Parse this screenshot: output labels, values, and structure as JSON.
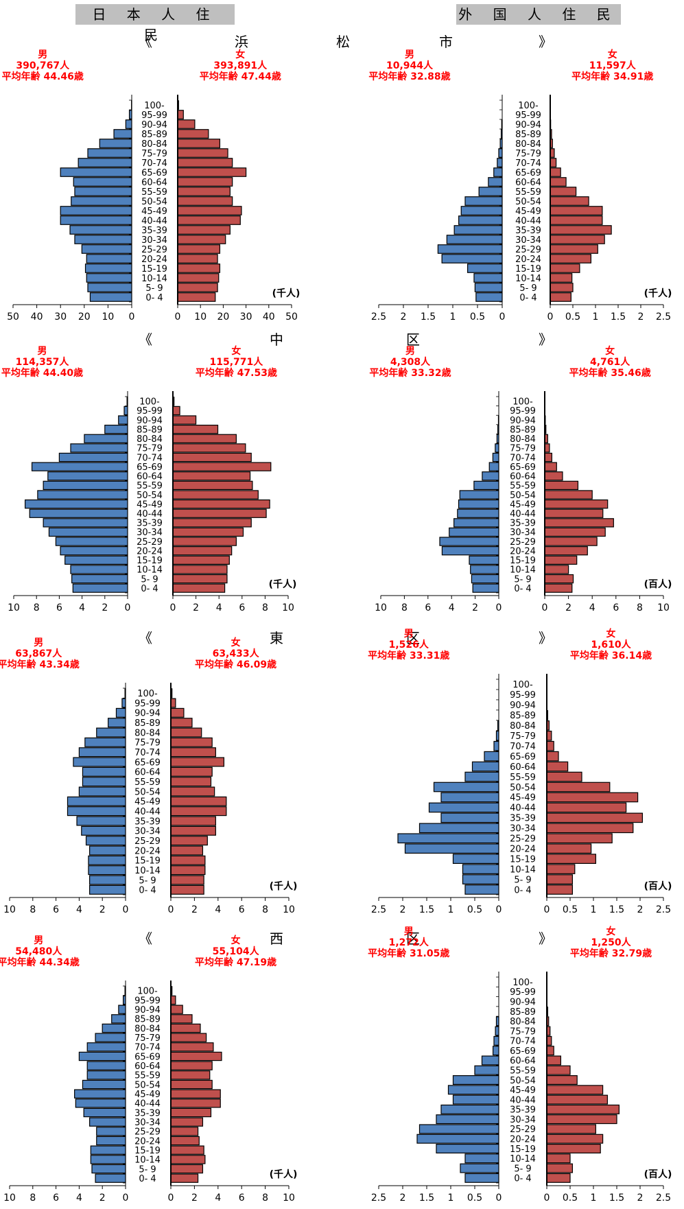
{
  "headers": {
    "japanese": "日 本 人 住 民",
    "foreign": "外 国 人 住 民"
  },
  "age_groups": [
    "100-",
    "95-99",
    "90-94",
    "85-89",
    "80-84",
    "75-79",
    "70-74",
    "65-69",
    "60-64",
    "55-59",
    "50-54",
    "45-49",
    "40-44",
    "35-39",
    "30-34",
    "25-29",
    "20-24",
    "15-19",
    "10-14",
    "5- 9",
    "0- 4"
  ],
  "labels": {
    "male": "男",
    "female": "女",
    "avg_prefix": "平均年齢"
  },
  "colors": {
    "male": "#4f81bd",
    "female": "#c0504d",
    "stats": "#ff0000"
  },
  "rows": [
    {
      "title": [
        "《",
        "浜",
        "松",
        "市",
        "》"
      ]
    },
    {
      "title": [
        "《",
        "中",
        "区",
        "》"
      ]
    },
    {
      "title": [
        "《",
        "東",
        "区",
        "》"
      ]
    },
    {
      "title": [
        "《",
        "西",
        "区",
        "》"
      ]
    }
  ],
  "chart_data": [
    {
      "type": "bar",
      "region": "浜松市",
      "population": "日本人住民",
      "unit": "(千人)",
      "xlim": [
        0,
        50
      ],
      "ticks": [
        "50",
        "40",
        "30",
        "20",
        "10",
        "0"
      ],
      "ticks_r": [
        "0",
        "10",
        "20",
        "30",
        "40",
        "50"
      ],
      "male": {
        "count": "390,767人",
        "avg_age": "44.46歳",
        "values": [
          0.1,
          1,
          2.5,
          7.5,
          13.5,
          18.5,
          22.5,
          30,
          24.5,
          24,
          25.5,
          30,
          30,
          26,
          24,
          21,
          19,
          19.5,
          19,
          18.5,
          17.5
        ]
      },
      "female": {
        "count": "393,891人",
        "avg_age": "47.44歳",
        "values": [
          0.4,
          2.5,
          7.5,
          13.5,
          18.5,
          22,
          24,
          30,
          24,
          23,
          24,
          28,
          27.5,
          23,
          21,
          18.5,
          17.5,
          18.5,
          18,
          17.5,
          16.5
        ]
      }
    },
    {
      "type": "bar",
      "region": "浜松市",
      "population": "外国人住民",
      "unit": "(千人)",
      "xlim": [
        0,
        2.5
      ],
      "ticks": [
        "2.5",
        "2",
        "1.5",
        "1",
        "0.5",
        "0"
      ],
      "ticks_r": [
        "0",
        "0.5",
        "1",
        "1.5",
        "2",
        "2.5"
      ],
      "male": {
        "count": "10,944人",
        "avg_age": "32.88歳",
        "values": [
          0,
          0,
          0.01,
          0.02,
          0.04,
          0.07,
          0.1,
          0.17,
          0.28,
          0.47,
          0.75,
          0.83,
          0.88,
          0.97,
          1.12,
          1.3,
          1.22,
          0.7,
          0.57,
          0.55,
          0.53
        ]
      },
      "female": {
        "count": "11,597人",
        "avg_age": "34.91歳",
        "values": [
          0,
          0,
          0.01,
          0.03,
          0.05,
          0.09,
          0.13,
          0.23,
          0.35,
          0.57,
          0.85,
          1.15,
          1.15,
          1.35,
          1.2,
          1.05,
          0.9,
          0.65,
          0.48,
          0.5,
          0.46
        ]
      }
    },
    {
      "type": "bar",
      "region": "中区",
      "population": "日本人住民",
      "unit": "(千人)",
      "xlim": [
        0,
        10
      ],
      "ticks": [
        "10",
        "8",
        "6",
        "4",
        "2",
        "0"
      ],
      "ticks_r": [
        "0",
        "2",
        "4",
        "6",
        "8",
        "10"
      ],
      "male": {
        "count": "114,357人",
        "avg_age": "44.40歳",
        "values": [
          0.05,
          0.3,
          0.8,
          2,
          3.8,
          5,
          6,
          8.4,
          7,
          7.4,
          7.9,
          9,
          8.6,
          7.4,
          6.9,
          6.3,
          5.9,
          5.5,
          5,
          4.9,
          4.8
        ]
      },
      "female": {
        "count": "115,771人",
        "avg_age": "47.53歳",
        "values": [
          0.1,
          0.6,
          2,
          3.9,
          5.5,
          6.3,
          6.8,
          8.5,
          6.7,
          6.9,
          7.4,
          8.4,
          8.1,
          6.8,
          6.1,
          5.5,
          5.1,
          4.9,
          4.7,
          4.7,
          4.5
        ]
      }
    },
    {
      "type": "bar",
      "region": "中区",
      "population": "外国人住民",
      "unit": "(百人)",
      "xlim": [
        0,
        10
      ],
      "ticks": [
        "10",
        "8",
        "6",
        "4",
        "2",
        "0"
      ],
      "ticks_r": [
        "0",
        "2",
        "4",
        "6",
        "8",
        "10"
      ],
      "male": {
        "count": "4,308人",
        "avg_age": "33.32歳",
        "values": [
          0,
          0,
          0.03,
          0.08,
          0.15,
          0.3,
          0.5,
          0.8,
          1.4,
          2.1,
          3.3,
          3.4,
          3.5,
          3.8,
          4.2,
          5,
          4.8,
          2.5,
          2.4,
          2.3,
          2.2
        ]
      },
      "female": {
        "count": "4,761人",
        "avg_age": "35.46歳",
        "values": [
          0,
          0,
          0.05,
          0.1,
          0.25,
          0.4,
          0.6,
          1,
          1.5,
          2.8,
          4,
          5.3,
          4.9,
          5.8,
          5.1,
          4.4,
          3.6,
          2.7,
          2,
          2.4,
          2.3
        ]
      }
    },
    {
      "type": "bar",
      "region": "東区",
      "population": "日本人住民",
      "unit": "(千人)",
      "xlim": [
        0,
        10
      ],
      "ticks": [
        "10",
        "8",
        "6",
        "4",
        "2",
        "0"
      ],
      "ticks_r": [
        "0",
        "2",
        "4",
        "6",
        "8",
        "10"
      ],
      "male": {
        "count": "63,867人",
        "avg_age": "43.34歳",
        "values": [
          0.05,
          0.3,
          0.8,
          1.5,
          2.5,
          3.5,
          4,
          4.5,
          3.7,
          3.7,
          4,
          5,
          5,
          4.2,
          3.8,
          3.4,
          3.1,
          3.2,
          3.2,
          3.1,
          3.1
        ]
      },
      "female": {
        "count": "63,433人",
        "avg_age": "46.09歳",
        "values": [
          0.1,
          0.4,
          1.1,
          1.8,
          2.6,
          3.5,
          3.8,
          4.5,
          3.5,
          3.4,
          3.7,
          4.7,
          4.7,
          3.8,
          3.8,
          3.1,
          2.7,
          2.9,
          2.9,
          2.8,
          2.8
        ]
      }
    },
    {
      "type": "bar",
      "region": "東区",
      "population": "外国人住民",
      "unit": "(百人)",
      "xlim": [
        0,
        2.5
      ],
      "ticks": [
        "2.5",
        "2",
        "1.5",
        "1",
        "0.5",
        "0"
      ],
      "ticks_r": [
        "0",
        "0.5",
        "1",
        "1.5",
        "2",
        "2.5"
      ],
      "male": {
        "count": "1,526人",
        "avg_age": "33.31歳",
        "values": [
          0,
          0,
          0,
          0,
          0.02,
          0.05,
          0.1,
          0.3,
          0.55,
          0.7,
          1.35,
          1.2,
          1.45,
          1.2,
          1.65,
          2.1,
          1.95,
          0.95,
          0.75,
          0.75,
          0.7
        ]
      },
      "female": {
        "count": "1,610人",
        "avg_age": "36.14歳",
        "values": [
          0,
          0,
          0,
          0.02,
          0.05,
          0.1,
          0.15,
          0.25,
          0.45,
          0.75,
          1.35,
          1.95,
          1.7,
          2.05,
          1.85,
          1.4,
          0.95,
          1.05,
          0.6,
          0.55,
          0.55
        ]
      }
    },
    {
      "type": "bar",
      "region": "西区",
      "population": "日本人住民",
      "unit": "(千人)",
      "xlim": [
        0,
        10
      ],
      "ticks": [
        "10",
        "8",
        "6",
        "4",
        "2",
        "0"
      ],
      "ticks_r": [
        "0",
        "2",
        "4",
        "6",
        "8",
        "10"
      ],
      "male": {
        "count": "54,480人",
        "avg_age": "44.34歳",
        "values": [
          0.05,
          0.2,
          0.6,
          1.2,
          2,
          2.6,
          3.3,
          4,
          3.3,
          3.3,
          3.7,
          4.4,
          4.3,
          3.6,
          3.1,
          2.5,
          2.5,
          3,
          3,
          2.9,
          2.6
        ]
      },
      "female": {
        "count": "55,104人",
        "avg_age": "47.19歳",
        "values": [
          0.1,
          0.4,
          1,
          1.8,
          2.5,
          3,
          3.6,
          4.3,
          3.5,
          3.3,
          3.5,
          4.2,
          4.2,
          3.4,
          2.7,
          2.3,
          2.4,
          2.8,
          2.9,
          2.7,
          2.3
        ]
      }
    },
    {
      "type": "bar",
      "region": "西区",
      "population": "外国人住民",
      "unit": "(百人)",
      "xlim": [
        0,
        2.5
      ],
      "ticks": [
        "2.5",
        "2",
        "1.5",
        "1",
        "0.5",
        "0"
      ],
      "ticks_r": [
        "0",
        "0.5",
        "1",
        "1.5",
        "2",
        "2.5"
      ],
      "male": {
        "count": "1,272人",
        "avg_age": "31.05歳",
        "values": [
          0,
          0,
          0,
          0,
          0.05,
          0.07,
          0.1,
          0.12,
          0.35,
          0.5,
          0.95,
          1.05,
          0.95,
          1.2,
          1.3,
          1.65,
          1.7,
          1.3,
          0.7,
          0.8,
          0.7
        ]
      },
      "female": {
        "count": "1,250人",
        "avg_age": "32.79歳",
        "values": [
          0,
          0,
          0,
          0.02,
          0.04,
          0.07,
          0.1,
          0.15,
          0.3,
          0.5,
          0.65,
          1.2,
          1.3,
          1.55,
          1.5,
          1.05,
          1.2,
          1.15,
          0.5,
          0.55,
          0.5
        ]
      }
    }
  ]
}
